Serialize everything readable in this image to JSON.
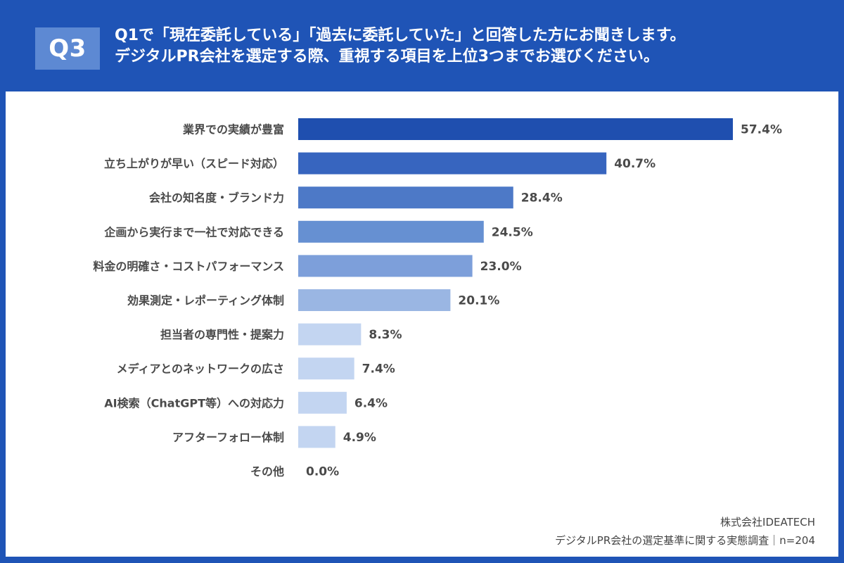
{
  "question": {
    "badge": "Q3",
    "line1": "Q1で「現在委託している」「過去に委託していた」と回答した方にお聞きします。",
    "line2": "デジタルPR会社を選定する際、重視する項目を上位3つまでお選びください。"
  },
  "footer": {
    "company": "株式会社IDEATECH",
    "survey": "デジタルPR会社の選定基準に関する実態調査｜n=204"
  },
  "chart_data": {
    "type": "bar",
    "orientation": "horizontal",
    "title": "Q3 デジタルPR会社を選定する際、重視する項目を上位3つまでお選びください。",
    "xlabel": "",
    "ylabel": "",
    "xlim": [
      0,
      60
    ],
    "grid": false,
    "categories": [
      "業界での実績が豊富",
      "立ち上がりが早い（スピード対応）",
      "会社の知名度・ブランド力",
      "企画から実行まで一社で対応できる",
      "料金の明確さ・コストパフォーマンス",
      "効果測定・レポーティング体制",
      "担当者の専門性・提案力",
      "メディアとのネットワークの広さ",
      "AI検索（ChatGPT等）への対応力",
      "アフターフォロー体制",
      "その他"
    ],
    "values": [
      57.4,
      40.7,
      28.4,
      24.5,
      23.0,
      20.1,
      8.3,
      7.4,
      6.4,
      4.9,
      0.0
    ],
    "value_labels": [
      "57.4%",
      "40.7%",
      "28.4%",
      "24.5%",
      "23.0%",
      "20.1%",
      "8.3%",
      "7.4%",
      "6.4%",
      "4.9%",
      "0.0%"
    ],
    "colors": [
      "#1f4faf",
      "#3765bf",
      "#4d79c7",
      "#6690d2",
      "#7d9fda",
      "#9ab6e3",
      "#c3d5f1",
      "#c3d5f1",
      "#c3d5f1",
      "#c3d5f1",
      "#c3d5f1"
    ]
  }
}
